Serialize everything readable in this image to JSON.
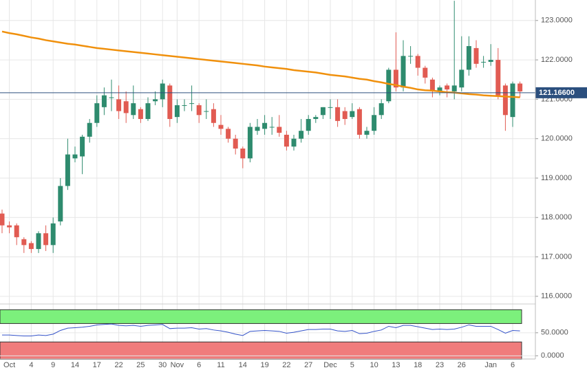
{
  "chart_data": [
    {
      "type": "candlestick",
      "categories": [
        null,
        "Oct",
        null,
        null,
        "4",
        null,
        null,
        "9",
        null,
        null,
        "14",
        null,
        null,
        "17",
        null,
        null,
        "22",
        null,
        null,
        "25",
        null,
        null,
        "30",
        null,
        "Nov",
        null,
        null,
        "6",
        null,
        null,
        "11",
        null,
        null,
        "14",
        null,
        null,
        "19",
        null,
        null,
        "22",
        null,
        null,
        "27",
        null,
        null,
        "Dec",
        null,
        null,
        "5",
        null,
        null,
        "10",
        null,
        null,
        "13",
        null,
        null,
        "18",
        null,
        null,
        "23",
        null,
        null,
        "26",
        null,
        null,
        null,
        "Jan",
        null,
        null,
        "6",
        null
      ],
      "open": [
        118.1,
        117.8,
        117.8,
        117.45,
        117.35,
        117.2,
        117.6,
        117.3,
        117.9,
        118.8,
        119.5,
        119.55,
        120.05,
        120.4,
        120.8,
        121.05,
        121.0,
        120.95,
        120.6,
        120.75,
        120.5,
        120.95,
        121.0,
        121.35,
        120.55,
        120.85,
        120.9,
        120.85,
        120.7,
        120.75,
        120.35,
        120.25,
        120.0,
        119.75,
        119.5,
        120.2,
        120.25,
        120.3,
        120.3,
        120.1,
        119.8,
        120.0,
        120.2,
        120.5,
        120.6,
        120.8,
        120.8,
        120.7,
        120.55,
        120.75,
        120.1,
        120.2,
        120.6,
        120.95,
        121.75,
        121.3,
        122.1,
        122.1,
        121.8,
        121.5,
        121.2,
        121.35,
        121.2,
        121.3,
        121.75,
        122.3,
        121.95,
        121.95,
        122.0,
        121.35,
        120.55,
        121.4
      ],
      "high": [
        118.2,
        117.9,
        117.85,
        117.5,
        117.4,
        117.65,
        117.8,
        118.0,
        119.0,
        120.0,
        119.8,
        120.1,
        120.5,
        121.1,
        121.3,
        121.5,
        121.35,
        121.2,
        121.35,
        120.8,
        121.05,
        121.2,
        121.5,
        121.4,
        121.0,
        121.0,
        121.35,
        120.9,
        121.0,
        120.9,
        120.6,
        120.3,
        120.1,
        119.8,
        120.4,
        120.5,
        120.6,
        120.55,
        120.6,
        120.2,
        120.1,
        120.5,
        120.6,
        120.6,
        120.8,
        121.0,
        121.0,
        120.8,
        120.9,
        120.8,
        120.3,
        120.8,
        121.0,
        121.8,
        122.7,
        122.5,
        122.35,
        122.15,
        121.85,
        121.55,
        121.35,
        121.4,
        123.5,
        122.6,
        122.6,
        122.5,
        122.1,
        122.4,
        122.3,
        121.4,
        121.45,
        121.45
      ],
      "low": [
        117.6,
        117.6,
        117.3,
        117.1,
        117.1,
        117.1,
        117.15,
        117.1,
        117.8,
        118.7,
        119.4,
        119.1,
        119.9,
        120.3,
        120.6,
        120.7,
        120.5,
        120.4,
        120.5,
        120.4,
        120.45,
        120.85,
        120.8,
        120.3,
        120.4,
        120.7,
        120.7,
        120.4,
        120.5,
        120.3,
        120.1,
        119.9,
        119.6,
        119.25,
        119.4,
        120.1,
        120.1,
        120.1,
        120.05,
        119.7,
        119.7,
        119.9,
        120.1,
        120.4,
        120.5,
        120.5,
        120.3,
        120.35,
        120.5,
        120.0,
        120.0,
        120.1,
        120.5,
        120.9,
        121.2,
        121.2,
        121.9,
        121.6,
        121.4,
        121.05,
        121.1,
        121.05,
        121.0,
        121.2,
        121.6,
        121.8,
        121.8,
        121.85,
        121.0,
        120.2,
        120.3,
        121.05
      ],
      "close": [
        117.8,
        117.75,
        117.5,
        117.3,
        117.2,
        117.6,
        117.3,
        117.85,
        118.8,
        119.6,
        119.6,
        120.05,
        120.4,
        120.9,
        121.1,
        121.05,
        120.7,
        120.65,
        120.9,
        120.5,
        120.9,
        121.0,
        121.4,
        120.5,
        120.85,
        120.85,
        120.9,
        120.6,
        120.7,
        120.4,
        120.25,
        120.0,
        119.75,
        119.5,
        120.3,
        120.3,
        120.4,
        120.3,
        120.15,
        119.8,
        120.0,
        120.2,
        120.5,
        120.55,
        120.8,
        120.8,
        120.45,
        120.5,
        120.7,
        120.1,
        120.2,
        120.6,
        120.9,
        121.75,
        121.3,
        122.1,
        122.1,
        121.8,
        121.55,
        121.2,
        121.3,
        121.25,
        121.35,
        121.75,
        122.35,
        121.9,
        121.95,
        122.0,
        121.1,
        120.6,
        121.4,
        121.2
      ],
      "up_color": "#2e8b6e",
      "down_color": "#e15b52",
      "moving_average": {
        "color": "#f0900c",
        "values": [
          122.72,
          122.68,
          122.65,
          122.61,
          122.57,
          122.54,
          122.5,
          122.47,
          122.44,
          122.41,
          122.39,
          122.36,
          122.33,
          122.3,
          122.28,
          122.26,
          122.24,
          122.22,
          122.2,
          122.18,
          122.16,
          122.14,
          122.12,
          122.1,
          122.08,
          122.06,
          122.04,
          122.02,
          122.0,
          121.98,
          121.96,
          121.94,
          121.92,
          121.9,
          121.88,
          121.86,
          121.83,
          121.81,
          121.79,
          121.77,
          121.74,
          121.72,
          121.7,
          121.68,
          121.65,
          121.62,
          121.6,
          121.58,
          121.55,
          121.52,
          121.5,
          121.46,
          121.43,
          121.39,
          121.36,
          121.32,
          121.29,
          121.25,
          121.23,
          121.22,
          121.2,
          121.18,
          121.17,
          121.15,
          121.13,
          121.12,
          121.1,
          121.09,
          121.08,
          121.07,
          121.06,
          121.05
        ]
      },
      "last_price": {
        "value": 121.166,
        "label": "121.16600"
      },
      "last_price_color": "#2b4f7e",
      "ylim": [
        115.84,
        123.52
      ],
      "yticks": [
        {
          "value": 116,
          "label": "116.0000"
        },
        {
          "value": 117,
          "label": "117.0000"
        },
        {
          "value": 118,
          "label": "118.0000"
        },
        {
          "value": 119,
          "label": "119.0000"
        },
        {
          "value": 120,
          "label": "120.0000"
        },
        {
          "value": 121,
          "label": "121.0000"
        },
        {
          "value": 122,
          "label": "122.0000"
        },
        {
          "value": 123,
          "label": "123.0000"
        }
      ],
      "grid": true
    },
    {
      "type": "line",
      "values": [
        45,
        45,
        44,
        43,
        43,
        45,
        44,
        47,
        55,
        60,
        61,
        62,
        64,
        67,
        68,
        69,
        66,
        65,
        66,
        64,
        66,
        67,
        68,
        59,
        60,
        60,
        61,
        58,
        59,
        56,
        54,
        51,
        47,
        44,
        53,
        54,
        55,
        54,
        53,
        49,
        51,
        54,
        57,
        57,
        58,
        58,
        54,
        53,
        55,
        48,
        49,
        53,
        56,
        64,
        61,
        66,
        66,
        63,
        60,
        57,
        58,
        57,
        58,
        62,
        67,
        64,
        64,
        64,
        57,
        49,
        55,
        54
      ],
      "color": "#3352c9",
      "overbought": 70,
      "oversold": 30,
      "upper": 100,
      "overbought_color": "#7cf07c",
      "oversold_color": "#f07c7c",
      "ylim": [
        -7,
        108
      ],
      "yticks": [
        {
          "value": 50,
          "label": "50.0000"
        },
        {
          "value": 0,
          "label": "0.0000"
        }
      ],
      "grid": true
    }
  ]
}
